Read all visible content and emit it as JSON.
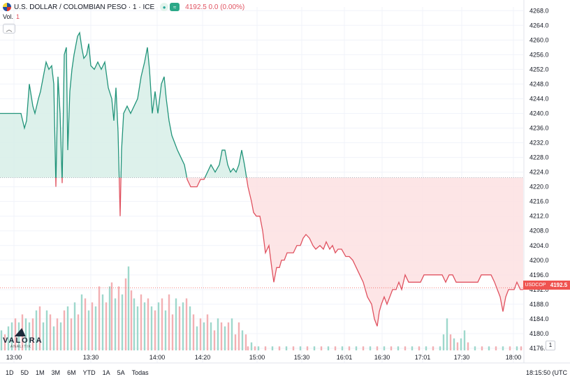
{
  "header": {
    "title": "U.S. DOLLAR / COLOMBIAN PESO · 1 · ICE",
    "quote": "4192.5  0.0 (0.00%)",
    "vol_label": "Vol.",
    "vol_value": "1",
    "collapse_icon": "chevron-up-icon"
  },
  "price_tag": {
    "symbol": "USDCOP",
    "value": "4192.5"
  },
  "logo": {
    "word": "VALORA",
    "sub": "ANALITIK"
  },
  "axis_button_label": "1",
  "ranges": [
    "1D",
    "5D",
    "1M",
    "3M",
    "6M",
    "YTD",
    "1A",
    "5A",
    "Todas"
  ],
  "clock": "18:15:50 (UTC",
  "colors": {
    "up": "#22947a",
    "down": "#e05260",
    "up_fill": "#d7efe8",
    "down_fill": "#fde1e2",
    "baseline": "#c9ccd4"
  },
  "chart_data": {
    "type": "line",
    "baseline": 4222.5,
    "ylim": [
      4172,
      4269
    ],
    "y_ticks": [
      4268,
      4264,
      4260,
      4256,
      4252,
      4248,
      4244,
      4240,
      4236,
      4232,
      4228,
      4224,
      4220,
      4216,
      4212,
      4208,
      4204,
      4200,
      4196,
      4192,
      4188,
      4184,
      4180,
      4176
    ],
    "x_ticks": [
      {
        "label": "13:00",
        "t": 20
      },
      {
        "label": "13:30",
        "t": 130
      },
      {
        "label": "14:00",
        "t": 225
      },
      {
        "label": "14:20",
        "t": 290
      },
      {
        "label": "15:00",
        "t": 368
      },
      {
        "label": "15:30",
        "t": 432
      },
      {
        "label": "16:01",
        "t": 493
      },
      {
        "label": "16:30",
        "t": 547
      },
      {
        "label": "17:01",
        "t": 605
      },
      {
        "label": "17:30",
        "t": 661
      },
      {
        "label": "18:00",
        "t": 735
      }
    ],
    "xlim": [
      0,
      749
    ],
    "price": [
      [
        0,
        4240
      ],
      [
        30,
        4240
      ],
      [
        35,
        4236
      ],
      [
        38,
        4238
      ],
      [
        42,
        4248
      ],
      [
        47,
        4242
      ],
      [
        50,
        4240
      ],
      [
        55,
        4244
      ],
      [
        58,
        4246
      ],
      [
        62,
        4250
      ],
      [
        66,
        4254
      ],
      [
        70,
        4252
      ],
      [
        74,
        4253
      ],
      [
        77,
        4248
      ],
      [
        80,
        4220
      ],
      [
        83,
        4250
      ],
      [
        86,
        4240
      ],
      [
        89,
        4221
      ],
      [
        92,
        4256
      ],
      [
        95,
        4258
      ],
      [
        97,
        4230
      ],
      [
        100,
        4246
      ],
      [
        103,
        4252
      ],
      [
        106,
        4256
      ],
      [
        108,
        4258
      ],
      [
        111,
        4261
      ],
      [
        114,
        4262
      ],
      [
        117,
        4258
      ],
      [
        120,
        4255
      ],
      [
        124,
        4256
      ],
      [
        127,
        4259
      ],
      [
        130,
        4253
      ],
      [
        135,
        4252
      ],
      [
        140,
        4254
      ],
      [
        145,
        4252
      ],
      [
        150,
        4254
      ],
      [
        155,
        4247
      ],
      [
        160,
        4244
      ],
      [
        163,
        4238
      ],
      [
        166,
        4247
      ],
      [
        169,
        4235
      ],
      [
        172,
        4212
      ],
      [
        174,
        4230
      ],
      [
        177,
        4240
      ],
      [
        182,
        4242
      ],
      [
        187,
        4240
      ],
      [
        192,
        4242
      ],
      [
        197,
        4244
      ],
      [
        202,
        4250
      ],
      [
        207,
        4254
      ],
      [
        211,
        4258
      ],
      [
        214,
        4252
      ],
      [
        218,
        4240
      ],
      [
        222,
        4246
      ],
      [
        226,
        4240
      ],
      [
        231,
        4248
      ],
      [
        235,
        4250
      ],
      [
        238,
        4244
      ],
      [
        242,
        4238
      ],
      [
        246,
        4234
      ],
      [
        250,
        4232
      ],
      [
        254,
        4230
      ],
      [
        259,
        4228
      ],
      [
        264,
        4226
      ],
      [
        268,
        4222
      ],
      [
        273,
        4220
      ],
      [
        278,
        4220
      ],
      [
        282,
        4220
      ],
      [
        287,
        4222
      ],
      [
        292,
        4222
      ],
      [
        297,
        4224
      ],
      [
        302,
        4226
      ],
      [
        308,
        4224
      ],
      [
        314,
        4226
      ],
      [
        318,
        4230
      ],
      [
        322,
        4230
      ],
      [
        326,
        4226
      ],
      [
        330,
        4224
      ],
      [
        334,
        4225
      ],
      [
        338,
        4224
      ],
      [
        342,
        4226
      ],
      [
        346,
        4230
      ],
      [
        350,
        4226
      ],
      [
        355,
        4220
      ],
      [
        360,
        4216
      ],
      [
        363,
        4213
      ],
      [
        367,
        4212
      ],
      [
        372,
        4212
      ],
      [
        376,
        4208
      ],
      [
        380,
        4202
      ],
      [
        385,
        4204
      ],
      [
        389,
        4198
      ],
      [
        392,
        4194
      ],
      [
        396,
        4198
      ],
      [
        400,
        4198
      ],
      [
        403,
        4200
      ],
      [
        407,
        4200
      ],
      [
        411,
        4202
      ],
      [
        416,
        4202
      ],
      [
        420,
        4202
      ],
      [
        425,
        4204
      ],
      [
        430,
        4204
      ],
      [
        434,
        4206
      ],
      [
        438,
        4207
      ],
      [
        443,
        4206
      ],
      [
        448,
        4204
      ],
      [
        452,
        4203
      ],
      [
        458,
        4204
      ],
      [
        463,
        4203
      ],
      [
        467,
        4205
      ],
      [
        472,
        4203
      ],
      [
        476,
        4204
      ],
      [
        480,
        4202
      ],
      [
        484,
        4203
      ],
      [
        489,
        4203
      ],
      [
        495,
        4201
      ],
      [
        500,
        4201
      ],
      [
        505,
        4200
      ],
      [
        510,
        4198
      ],
      [
        515,
        4196
      ],
      [
        520,
        4194
      ],
      [
        526,
        4190
      ],
      [
        532,
        4188
      ],
      [
        536,
        4184
      ],
      [
        540,
        4182
      ],
      [
        543,
        4186
      ],
      [
        546,
        4188
      ],
      [
        550,
        4190
      ],
      [
        554,
        4188
      ],
      [
        558,
        4190
      ],
      [
        562,
        4192
      ],
      [
        567,
        4192
      ],
      [
        571,
        4194
      ],
      [
        575,
        4192
      ],
      [
        580,
        4196
      ],
      [
        585,
        4194
      ],
      [
        590,
        4194
      ],
      [
        596,
        4194
      ],
      [
        602,
        4194
      ],
      [
        607,
        4196
      ],
      [
        612,
        4196
      ],
      [
        617,
        4196
      ],
      [
        622,
        4196
      ],
      [
        628,
        4196
      ],
      [
        633,
        4196
      ],
      [
        638,
        4194
      ],
      [
        643,
        4196
      ],
      [
        648,
        4196
      ],
      [
        653,
        4194
      ],
      [
        658,
        4194
      ],
      [
        663,
        4194
      ],
      [
        668,
        4194
      ],
      [
        673,
        4194
      ],
      [
        679,
        4194
      ],
      [
        684,
        4194
      ],
      [
        689,
        4196
      ],
      [
        694,
        4196
      ],
      [
        698,
        4196
      ],
      [
        703,
        4196
      ],
      [
        708,
        4194
      ],
      [
        712,
        4192
      ],
      [
        716,
        4190
      ],
      [
        720,
        4186
      ],
      [
        724,
        4190
      ],
      [
        728,
        4192
      ],
      [
        732,
        4192
      ],
      [
        736,
        4192
      ],
      [
        740,
        4194
      ],
      [
        745,
        4192
      ],
      [
        749,
        4192
      ]
    ],
    "volume": [
      [
        2,
        5,
        "u"
      ],
      [
        7,
        4,
        "d"
      ],
      [
        12,
        6,
        "u"
      ],
      [
        17,
        7,
        "u"
      ],
      [
        22,
        8,
        "d"
      ],
      [
        27,
        7,
        "u"
      ],
      [
        32,
        9,
        "d"
      ],
      [
        37,
        8,
        "u"
      ],
      [
        42,
        7,
        "u"
      ],
      [
        47,
        8,
        "d"
      ],
      [
        52,
        10,
        "u"
      ],
      [
        57,
        11,
        "d"
      ],
      [
        62,
        7,
        "u"
      ],
      [
        67,
        10,
        "u"
      ],
      [
        72,
        9,
        "d"
      ],
      [
        77,
        6,
        "u"
      ],
      [
        82,
        8,
        "d"
      ],
      [
        87,
        7,
        "u"
      ],
      [
        92,
        10,
        "d"
      ],
      [
        97,
        11,
        "u"
      ],
      [
        102,
        8,
        "d"
      ],
      [
        107,
        12,
        "u"
      ],
      [
        112,
        9,
        "d"
      ],
      [
        117,
        14,
        "u"
      ],
      [
        122,
        13,
        "d"
      ],
      [
        127,
        10,
        "u"
      ],
      [
        132,
        12,
        "d"
      ],
      [
        137,
        11,
        "u"
      ],
      [
        142,
        16,
        "d"
      ],
      [
        147,
        14,
        "u"
      ],
      [
        152,
        12,
        "d"
      ],
      [
        157,
        16,
        "u"
      ],
      [
        160,
        17,
        "d"
      ],
      [
        165,
        13,
        "u"
      ],
      [
        170,
        16,
        "d"
      ],
      [
        175,
        14,
        "u"
      ],
      [
        180,
        18,
        "d"
      ],
      [
        184,
        21,
        "u"
      ],
      [
        188,
        15,
        "d"
      ],
      [
        192,
        13,
        "u"
      ],
      [
        197,
        11,
        "u"
      ],
      [
        202,
        14,
        "d"
      ],
      [
        207,
        12,
        "u"
      ],
      [
        212,
        13,
        "d"
      ],
      [
        217,
        11,
        "u"
      ],
      [
        222,
        10,
        "d"
      ],
      [
        227,
        12,
        "u"
      ],
      [
        232,
        13,
        "d"
      ],
      [
        237,
        10,
        "u"
      ],
      [
        242,
        14,
        "d"
      ],
      [
        247,
        9,
        "d"
      ],
      [
        252,
        13,
        "u"
      ],
      [
        257,
        11,
        "d"
      ],
      [
        262,
        12,
        "u"
      ],
      [
        267,
        13,
        "d"
      ],
      [
        272,
        11,
        "u"
      ],
      [
        277,
        9,
        "d"
      ],
      [
        282,
        6,
        "u"
      ],
      [
        287,
        8,
        "d"
      ],
      [
        292,
        7,
        "u"
      ],
      [
        297,
        9,
        "d"
      ],
      [
        302,
        7,
        "u"
      ],
      [
        307,
        5,
        "d"
      ],
      [
        312,
        8,
        "u"
      ],
      [
        317,
        7,
        "d"
      ],
      [
        322,
        6,
        "u"
      ],
      [
        327,
        7,
        "d"
      ],
      [
        332,
        8,
        "u"
      ],
      [
        337,
        4,
        "d"
      ],
      [
        342,
        7,
        "d"
      ],
      [
        347,
        5,
        "u"
      ],
      [
        352,
        4,
        "d"
      ],
      [
        355,
        1,
        "d"
      ],
      [
        360,
        2,
        "u"
      ],
      [
        365,
        1,
        "d"
      ],
      [
        370,
        1,
        "u"
      ],
      [
        380,
        1,
        "d"
      ],
      [
        390,
        1,
        "u"
      ],
      [
        400,
        1,
        "d"
      ],
      [
        410,
        1,
        "u"
      ],
      [
        420,
        1,
        "d"
      ],
      [
        430,
        1,
        "u"
      ],
      [
        440,
        1,
        "d"
      ],
      [
        450,
        1,
        "u"
      ],
      [
        460,
        1,
        "d"
      ],
      [
        470,
        1,
        "u"
      ],
      [
        480,
        1,
        "d"
      ],
      [
        490,
        1,
        "u"
      ],
      [
        500,
        1,
        "d"
      ],
      [
        510,
        1,
        "u"
      ],
      [
        520,
        1,
        "d"
      ],
      [
        530,
        1,
        "u"
      ],
      [
        540,
        1,
        "d"
      ],
      [
        550,
        1,
        "u"
      ],
      [
        560,
        1,
        "d"
      ],
      [
        570,
        1,
        "u"
      ],
      [
        580,
        1,
        "d"
      ],
      [
        590,
        1,
        "u"
      ],
      [
        600,
        1,
        "d"
      ],
      [
        610,
        1,
        "u"
      ],
      [
        620,
        1,
        "d"
      ],
      [
        630,
        1,
        "u"
      ],
      [
        635,
        4,
        "u"
      ],
      [
        640,
        8,
        "u"
      ],
      [
        645,
        4,
        "d"
      ],
      [
        650,
        3,
        "u"
      ],
      [
        655,
        2,
        "d"
      ],
      [
        660,
        3,
        "u"
      ],
      [
        665,
        5,
        "u"
      ],
      [
        670,
        2,
        "d"
      ],
      [
        680,
        1,
        "u"
      ],
      [
        690,
        1,
        "d"
      ],
      [
        700,
        1,
        "u"
      ],
      [
        710,
        1,
        "d"
      ],
      [
        720,
        1,
        "u"
      ],
      [
        730,
        1,
        "d"
      ],
      [
        740,
        1,
        "u"
      ],
      [
        746,
        1,
        "d"
      ]
    ]
  }
}
